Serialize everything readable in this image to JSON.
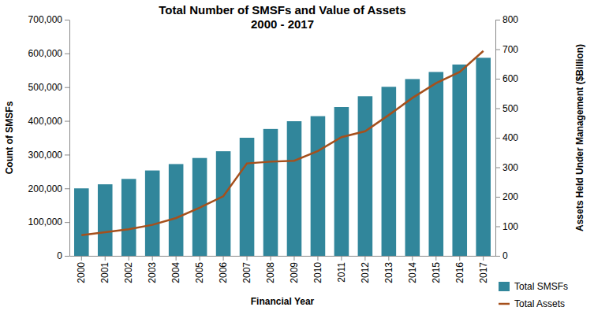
{
  "chart_data": {
    "type": "bar",
    "title": "Total Number of SMSFs and Value of Assets",
    "subtitle": "2000 - 2017",
    "x_label": "Financial Year",
    "y_label": "Count of SMSFs",
    "y2_label": "Assets Held Under Management ($Billion)",
    "categories": [
      "2000",
      "2001",
      "2002",
      "2003",
      "2004",
      "2005",
      "2006",
      "2007",
      "2008",
      "2009",
      "2010",
      "2011",
      "2012",
      "2013",
      "2014",
      "2015",
      "2016",
      "2017"
    ],
    "series": [
      {
        "name": "Total SMSFs",
        "type": "bar",
        "color": "#31869b",
        "values": [
          200000,
          212000,
          228000,
          253000,
          272000,
          290000,
          310000,
          350000,
          376000,
          399000,
          414000,
          441000,
          473000,
          501000,
          524000,
          545000,
          567000,
          587000
        ]
      },
      {
        "name": "Total Assets",
        "type": "line",
        "color": "#a5501c",
        "axis": "y2",
        "values": [
          70,
          80,
          90,
          105,
          128,
          163,
          202,
          313,
          319,
          322,
          355,
          402,
          422,
          477,
          535,
          585,
          623,
          694
        ]
      }
    ],
    "ylim": [
      0,
      700000
    ],
    "yticks": [
      0,
      {
        "value": 100000,
        "label": "100,000"
      },
      {
        "value": 200000,
        "label": "200,000"
      },
      {
        "value": 300000,
        "label": "300,000"
      },
      {
        "value": 400000,
        "label": "400,000"
      },
      {
        "value": 500000,
        "label": "500,000"
      },
      {
        "value": 600000,
        "label": "600,000"
      },
      {
        "value": 700000,
        "label": "700,000"
      }
    ],
    "y2lim": [
      0,
      800
    ],
    "y2ticks": [
      0,
      100,
      200,
      300,
      400,
      500,
      600,
      700,
      800
    ],
    "grid": false,
    "legend": "bottom-right"
  }
}
